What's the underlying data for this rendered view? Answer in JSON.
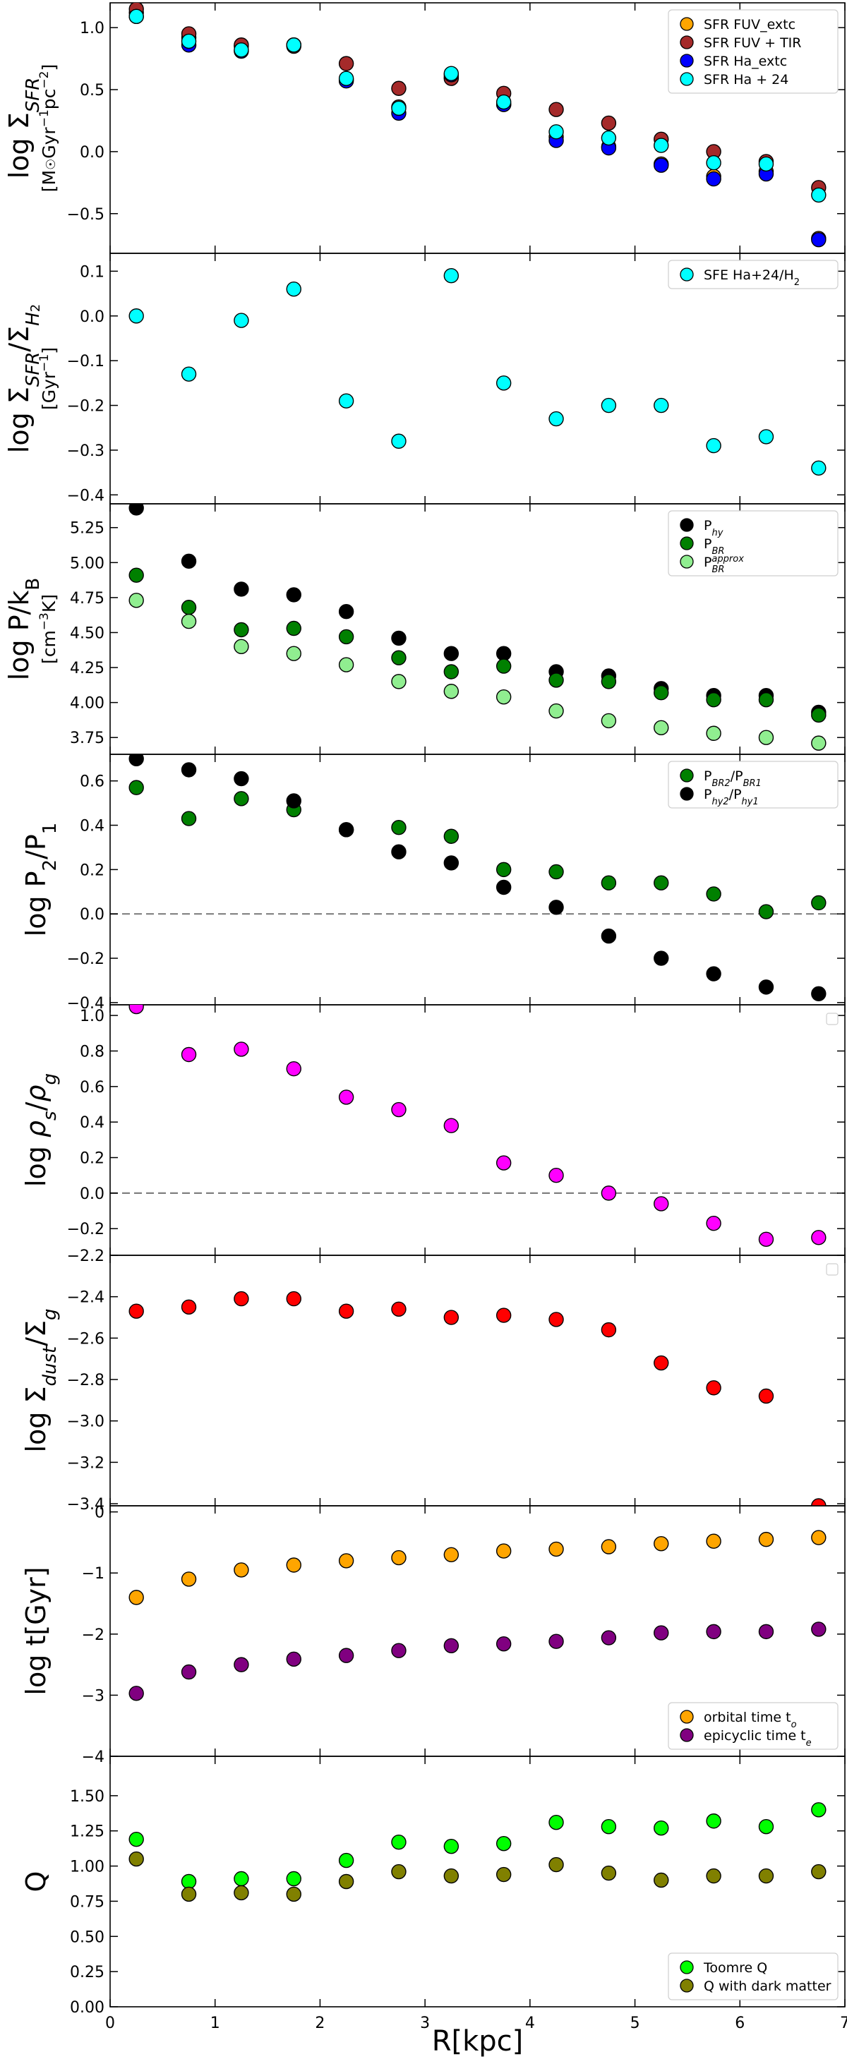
{
  "figure": {
    "xlabel": "R[kpc]",
    "xlim": [
      0,
      7
    ],
    "xticks": [
      "0",
      "1",
      "2",
      "3",
      "4",
      "5",
      "6",
      "7"
    ]
  },
  "chart_data": [
    {
      "type": "scatter",
      "panel": 1,
      "ylabel_html": "log Σ<tspan baseline-shift='sub' font-size='26' font-style='italic'>SFR</tspan>",
      "ylabel_text": "log ΣSFR",
      "yunit_html": "[M<tspan font-size='18'>☉</tspan>Gyr<tspan baseline-shift='super' font-size='17'>−1</tspan>pc<tspan baseline-shift='super' font-size='17'>−2</tspan>]",
      "yunit_text": "[M☉Gyr−1pc−2]",
      "ylim": [
        -0.82,
        1.2
      ],
      "yticks": [
        -0.5,
        0.0,
        0.5,
        1.0
      ],
      "ytick_labels": [
        "−0.5",
        "0.0",
        "0.5",
        "1.0"
      ],
      "legend": "top-right",
      "x": [
        0.25,
        0.75,
        1.25,
        1.75,
        2.25,
        2.75,
        3.25,
        3.75,
        4.25,
        4.75,
        5.25,
        5.75,
        6.25,
        6.75
      ],
      "series": [
        {
          "name": "SFR FUV_extc",
          "legend_html": "SFR FUV_extc",
          "color": "#ffa500",
          "values": [
            1.12,
            0.92,
            0.85,
            0.85,
            0.58,
            0.36,
            0.6,
            0.38,
            0.12,
            0.04,
            -0.1,
            -0.2,
            -0.16,
            -0.7
          ]
        },
        {
          "name": "SFR FUV + TIR",
          "legend_html": "SFR FUV + TIR",
          "color": "#a52a2a",
          "values": [
            1.15,
            0.95,
            0.86,
            0.86,
            0.71,
            0.51,
            0.59,
            0.47,
            0.34,
            0.23,
            0.1,
            0.0,
            -0.08,
            -0.29
          ]
        },
        {
          "name": "SFR Ha_extc",
          "legend_html": "SFR Ha_extc",
          "color": "#0000ff",
          "values": [
            1.09,
            0.86,
            0.81,
            0.86,
            0.57,
            0.31,
            0.62,
            0.38,
            0.09,
            0.03,
            -0.11,
            -0.22,
            -0.18,
            -0.71
          ]
        },
        {
          "name": "SFR Ha + 24",
          "legend_html": "SFR Ha + 24",
          "color": "#00ffff",
          "values": [
            1.09,
            0.89,
            0.82,
            0.86,
            0.59,
            0.35,
            0.63,
            0.4,
            0.16,
            0.11,
            0.05,
            -0.09,
            -0.1,
            -0.35
          ]
        }
      ]
    },
    {
      "type": "scatter",
      "panel": 2,
      "ylabel_html": "log Σ<tspan baseline-shift='sub' font-size='26' font-style='italic'>SFR</tspan>/Σ<tspan baseline-shift='sub' font-size='26' font-style='italic'>H</tspan><tspan baseline-shift='-16' font-size='18'>2</tspan>",
      "ylabel_text": "log ΣSFR/ΣH2",
      "yunit_html": "[Gyr<tspan baseline-shift='super' font-size='17'>−1</tspan>]",
      "yunit_text": "[Gyr−1]",
      "ylim": [
        -0.42,
        0.14
      ],
      "yticks": [
        -0.4,
        -0.3,
        -0.2,
        -0.1,
        0.0,
        0.1
      ],
      "ytick_labels": [
        "−0.4",
        "−0.3",
        "−0.2",
        "−0.1",
        "0.0",
        "0.1"
      ],
      "legend": "top-right",
      "x": [
        0.25,
        0.75,
        1.25,
        1.75,
        2.25,
        2.75,
        3.25,
        3.75,
        4.25,
        4.75,
        5.25,
        5.75,
        6.25,
        6.75
      ],
      "series": [
        {
          "name": "SFE Ha+24/H2",
          "legend_html": "SFE Ha+24/H<tspan baseline-shift='sub' font-size='13'>2</tspan>",
          "color": "#00ffff",
          "values": [
            0.0,
            -0.13,
            -0.01,
            0.06,
            -0.19,
            -0.28,
            0.09,
            -0.15,
            -0.23,
            -0.2,
            -0.2,
            -0.29,
            -0.27,
            -0.34
          ]
        }
      ]
    },
    {
      "type": "scatter",
      "panel": 3,
      "ylabel_html": "log P/k<tspan baseline-shift='sub' font-size='26'>B</tspan>",
      "ylabel_text": "log P/kB",
      "yunit_html": "[cm<tspan baseline-shift='super' font-size='17'>−3</tspan>K]",
      "yunit_text": "[cm−3K]",
      "ylim": [
        3.63,
        5.42
      ],
      "yticks": [
        3.75,
        4.0,
        4.25,
        4.5,
        4.75,
        5.0,
        5.25
      ],
      "ytick_labels": [
        "3.75",
        "4.00",
        "4.25",
        "4.50",
        "4.75",
        "5.00",
        "5.25"
      ],
      "legend": "top-right",
      "x": [
        0.25,
        0.75,
        1.25,
        1.75,
        2.25,
        2.75,
        3.25,
        3.75,
        4.25,
        4.75,
        5.25,
        5.75,
        6.25,
        6.75
      ],
      "series": [
        {
          "name": "Phy",
          "legend_html": "P<tspan baseline-shift='sub' font-size='13' font-style='italic'>hy</tspan>",
          "color": "#000000",
          "values": [
            5.39,
            5.01,
            4.81,
            4.77,
            4.65,
            4.46,
            4.35,
            4.35,
            4.22,
            4.19,
            4.1,
            4.05,
            4.05,
            3.93
          ]
        },
        {
          "name": "PBR",
          "legend_html": "P<tspan baseline-shift='sub' font-size='13' font-style='italic'>BR</tspan>",
          "color": "#008000",
          "values": [
            4.91,
            4.68,
            4.52,
            4.53,
            4.47,
            4.32,
            4.22,
            4.26,
            4.16,
            4.15,
            4.07,
            4.02,
            4.02,
            3.91
          ]
        },
        {
          "name": "PBR approx",
          "legend_html": "P<tspan baseline-shift='sub' font-size='13' font-style='italic'>BR</tspan><tspan dx='-18' baseline-shift='super' font-size='13' font-style='italic'>approx</tspan>",
          "color": "#90ee90",
          "values": [
            4.73,
            4.58,
            4.4,
            4.35,
            4.27,
            4.15,
            4.08,
            4.04,
            3.94,
            3.87,
            3.82,
            3.78,
            3.75,
            3.71
          ]
        }
      ]
    },
    {
      "type": "scatter",
      "panel": 4,
      "ylabel_html": "log P<tspan baseline-shift='sub' font-size='26'>2</tspan>/P<tspan baseline-shift='sub' font-size='26'>1</tspan>",
      "ylabel_text": "log P2/P1",
      "yunit_html": "",
      "yunit_text": "",
      "ylim": [
        -0.41,
        0.72
      ],
      "yticks": [
        -0.4,
        -0.2,
        0.0,
        0.2,
        0.4,
        0.6
      ],
      "ytick_labels": [
        "−0.4",
        "−0.2",
        "0.0",
        "0.2",
        "0.4",
        "0.6"
      ],
      "hline": 0,
      "legend": "top-right",
      "x": [
        0.25,
        0.75,
        1.25,
        1.75,
        2.25,
        2.75,
        3.25,
        3.75,
        4.25,
        4.75,
        5.25,
        5.75,
        6.25,
        6.75
      ],
      "series": [
        {
          "name": "PBR2/PBR1",
          "legend_html": "P<tspan baseline-shift='sub' font-size='13' font-style='italic'>BR2</tspan>/P<tspan baseline-shift='sub' font-size='13' font-style='italic'>BR1</tspan>",
          "color": "#008000",
          "values": [
            0.57,
            0.43,
            0.52,
            0.47,
            0.38,
            0.39,
            0.35,
            0.2,
            0.19,
            0.14,
            0.14,
            0.09,
            0.01,
            0.05
          ]
        },
        {
          "name": "Phy2/Phy1",
          "legend_html": "P<tspan baseline-shift='sub' font-size='13' font-style='italic'>hy2</tspan>/P<tspan baseline-shift='sub' font-size='13' font-style='italic'>hy1</tspan>",
          "color": "#000000",
          "values": [
            0.7,
            0.65,
            0.61,
            0.51,
            0.38,
            0.28,
            0.23,
            0.12,
            0.03,
            -0.1,
            -0.2,
            -0.27,
            -0.33,
            -0.36
          ]
        }
      ]
    },
    {
      "type": "scatter",
      "panel": 5,
      "ylabel_html": "log <tspan font-style='italic'>ρ</tspan><tspan baseline-shift='sub' font-size='26' font-style='italic'>s</tspan>/<tspan font-style='italic'>ρ</tspan><tspan baseline-shift='sub' font-size='26' font-style='italic'>g</tspan>",
      "ylabel_text": "log ρs/ρg",
      "yunit_html": "",
      "yunit_text": "",
      "ylim": [
        -0.35,
        1.06
      ],
      "yticks": [
        -0.2,
        0.0,
        0.2,
        0.4,
        0.6,
        0.8,
        1.0
      ],
      "ytick_labels": [
        "−0.2",
        "0.0",
        "0.2",
        "0.4",
        "0.6",
        "0.8",
        "1.0"
      ],
      "hline": 0,
      "legend": "top-right (empty)",
      "x": [
        0.25,
        0.75,
        1.25,
        1.75,
        2.25,
        2.75,
        3.25,
        3.75,
        4.25,
        4.75,
        5.25,
        5.75,
        6.25,
        6.75
      ],
      "series": [
        {
          "name": "rho_s/rho_g",
          "legend_html": "",
          "color": "#ff00ff",
          "values": [
            1.05,
            0.78,
            0.81,
            0.7,
            0.54,
            0.47,
            0.38,
            0.17,
            0.1,
            0.0,
            -0.06,
            -0.17,
            -0.26,
            -0.25
          ]
        }
      ]
    },
    {
      "type": "scatter",
      "panel": 6,
      "ylabel_html": "log Σ<tspan baseline-shift='sub' font-size='26' font-style='italic'>dust</tspan>/Σ<tspan baseline-shift='sub' font-size='26' font-style='italic'>g</tspan>",
      "ylabel_text": "log Σdust/Σg",
      "yunit_html": "",
      "yunit_text": "",
      "ylim": [
        -3.41,
        -2.2
      ],
      "yticks": [
        -3.4,
        -3.2,
        -3.0,
        -2.8,
        -2.6,
        -2.4,
        -2.2
      ],
      "ytick_labels": [
        "−3.4",
        "−3.2",
        "−3.0",
        "−2.8",
        "−2.6",
        "−2.4",
        "−2.2"
      ],
      "legend": "top-right (empty)",
      "x": [
        0.25,
        0.75,
        1.25,
        1.75,
        2.25,
        2.75,
        3.25,
        3.75,
        4.25,
        4.75,
        5.25,
        5.75,
        6.25,
        6.75
      ],
      "series": [
        {
          "name": "dust/gas",
          "legend_html": "",
          "color": "#ff0000",
          "values": [
            -2.47,
            -2.45,
            -2.41,
            -2.41,
            -2.47,
            -2.46,
            -2.5,
            -2.49,
            -2.51,
            -2.56,
            -2.72,
            -2.84,
            -2.88,
            -3.41
          ]
        }
      ]
    },
    {
      "type": "scatter",
      "panel": 7,
      "ylabel_html": "log t[Gyr]",
      "ylabel_text": "log t[Gyr]",
      "yunit_html": "",
      "yunit_text": "",
      "ylim": [
        -4.0,
        0.1
      ],
      "yticks": [
        -4,
        -3,
        -2,
        -1,
        0
      ],
      "ytick_labels": [
        "−4",
        "−3",
        "−2",
        "−1",
        "0"
      ],
      "legend": "bottom-right",
      "x": [
        0.25,
        0.75,
        1.25,
        1.75,
        2.25,
        2.75,
        3.25,
        3.75,
        4.25,
        4.75,
        5.25,
        5.75,
        6.25,
        6.75
      ],
      "series": [
        {
          "name": "orbital time to",
          "legend_html": "orbital time t<tspan baseline-shift='sub' font-size='13' font-style='italic'>o</tspan>",
          "color": "#ffa500",
          "values": [
            -1.4,
            -1.1,
            -0.95,
            -0.87,
            -0.8,
            -0.75,
            -0.7,
            -0.64,
            -0.61,
            -0.57,
            -0.52,
            -0.48,
            -0.45,
            -0.42
          ]
        },
        {
          "name": "epicyclic time te",
          "legend_html": "epicyclic time t<tspan baseline-shift='sub' font-size='13' font-style='italic'>e</tspan>",
          "color": "#800080",
          "values": [
            -2.97,
            -2.62,
            -2.5,
            -2.41,
            -2.35,
            -2.27,
            -2.19,
            -2.16,
            -2.12,
            -2.06,
            -1.98,
            -1.96,
            -1.96,
            -1.92
          ]
        }
      ]
    },
    {
      "type": "scatter",
      "panel": 8,
      "ylabel_html": "Q",
      "ylabel_text": "Q",
      "yunit_html": "",
      "yunit_text": "",
      "ylim": [
        0.0,
        1.78
      ],
      "yticks": [
        0.0,
        0.25,
        0.5,
        0.75,
        1.0,
        1.25,
        1.5
      ],
      "ytick_labels": [
        "0.00",
        "0.25",
        "0.50",
        "0.75",
        "1.00",
        "1.25",
        "1.50"
      ],
      "legend": "bottom-right",
      "x": [
        0.25,
        0.75,
        1.25,
        1.75,
        2.25,
        2.75,
        3.25,
        3.75,
        4.25,
        4.75,
        5.25,
        5.75,
        6.25,
        6.75
      ],
      "series": [
        {
          "name": "Toomre Q",
          "legend_html": "Toomre Q",
          "color": "#00ff00",
          "values": [
            1.19,
            0.89,
            0.91,
            0.91,
            1.04,
            1.17,
            1.14,
            1.16,
            1.31,
            1.28,
            1.27,
            1.32,
            1.28,
            1.4
          ]
        },
        {
          "name": "Q with dark matter",
          "legend_html": "Q with dark matter",
          "color": "#808000",
          "values": [
            1.05,
            0.8,
            0.81,
            0.8,
            0.89,
            0.96,
            0.93,
            0.94,
            1.01,
            0.95,
            0.9,
            0.93,
            0.93,
            0.96
          ]
        }
      ]
    }
  ]
}
